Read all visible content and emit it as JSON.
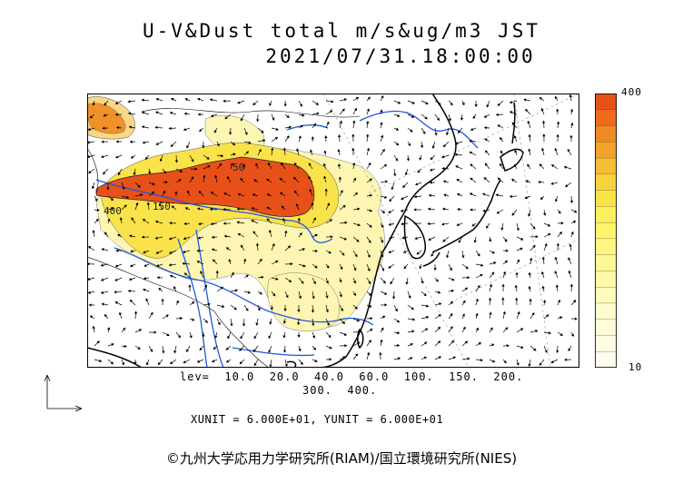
{
  "title": {
    "line1": "U-V&Dust total m/s&ug/m3 JST",
    "line2": "2021/07/31.18:00:00"
  },
  "colorbar": {
    "top_label": "400",
    "bottom_label": "10",
    "colors": [
      "#e8501a",
      "#ee6a1c",
      "#f08a24",
      "#f3a32c",
      "#f6bd36",
      "#f8d23e",
      "#fae34a",
      "#fbef5c",
      "#fdf46c",
      "#fdf680",
      "#fdf894",
      "#fef9a8",
      "#fefabc",
      "#fefbcc",
      "#fefcd8",
      "#fefde4",
      "#fffeee"
    ]
  },
  "contour_labels": [
    "400",
    "150",
    "50"
  ],
  "levels": {
    "line1": "lev=  10.0  20.0  40.0  60.0  100.  150.  200.",
    "line2": "300.  400."
  },
  "units_line": "XUNIT = 6.000E+01, YUNIT = 6.000E+01",
  "credit": "©九州大学応用力学研究所(RIAM)/国立環境研究所(NIES)",
  "palette": {
    "land_border": "#000000",
    "river": "#1f56e0",
    "dust_high": "#e8501a",
    "dust_mid": "#f6bd36",
    "dust_low": "#fdf6a8"
  }
}
